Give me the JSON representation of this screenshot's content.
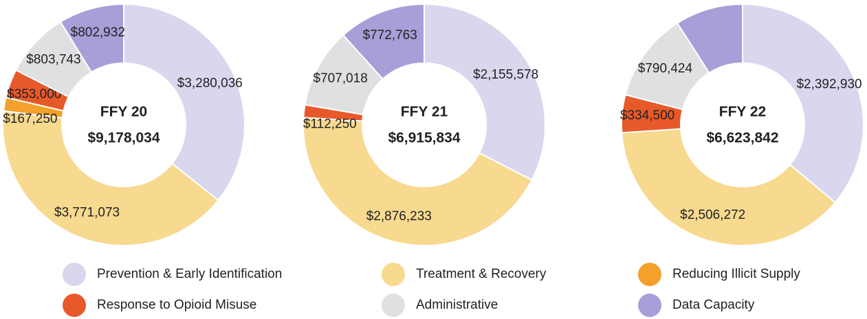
{
  "legend": {
    "labels": [
      "Prevention & Early Identification",
      "Treatment & Recovery",
      "Reducing Illicit Supply",
      "Response to Opioid Misuse",
      "Administrative",
      "Data Capacity"
    ],
    "colors": [
      "#d9d7ee",
      "#f7d98f",
      "#f3a12a",
      "#e8592a",
      "#dfe0e1",
      "#a69fd8"
    ]
  },
  "chart_data": [
    {
      "type": "pie",
      "donut": true,
      "title": "FFY 20",
      "total": "$9,178,034",
      "values": [
        3280036,
        3771073,
        167250,
        353000,
        803743,
        802932
      ],
      "value_labels": [
        "$3,280,036",
        "$3,771,073",
        "$167,250",
        "$353,000",
        "$803,743",
        "$802,932"
      ]
    },
    {
      "type": "pie",
      "donut": true,
      "title": "FFY 21",
      "total": "$6,915,834",
      "values": [
        2155578,
        2876233,
        null,
        112250,
        707018,
        772763
      ],
      "value_labels": [
        "$2,155,578",
        "$2,876,233",
        null,
        "$112,250",
        "$707,018",
        "$772,763"
      ]
    },
    {
      "type": "pie",
      "donut": true,
      "title": "FFY 22",
      "total": "$6,623,842",
      "values": [
        2392930,
        2506272,
        null,
        334500,
        790424,
        600000
      ],
      "value_labels": [
        "$2,392,930",
        "$2,506,272",
        null,
        "$334,500",
        "$790,424",
        null
      ]
    }
  ]
}
